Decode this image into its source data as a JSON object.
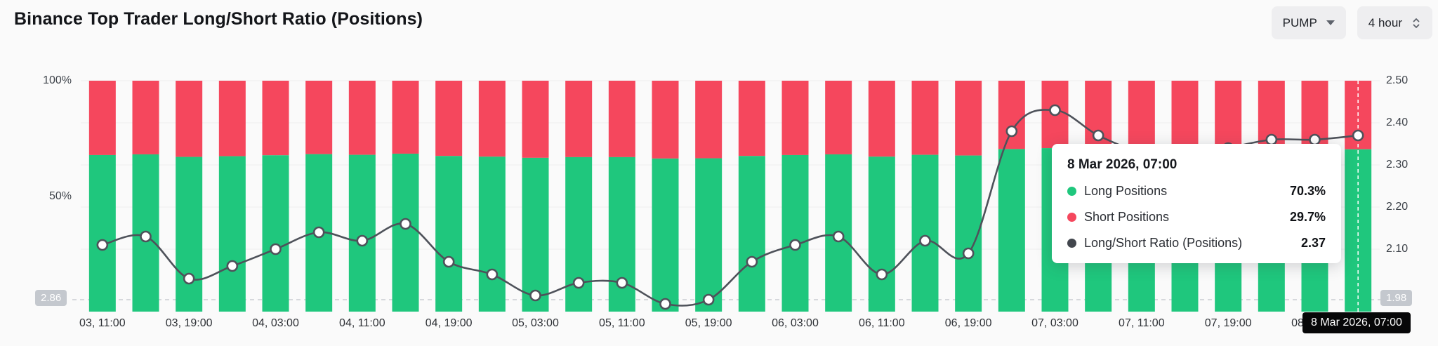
{
  "header": {
    "title": "Binance Top Trader Long/Short Ratio (Positions)",
    "pair_select": "PUMP",
    "interval_select": "4 hour"
  },
  "tooltip": {
    "title": "8 Mar 2026, 07:00",
    "rows": [
      {
        "label": "Long Positions",
        "value": "70.3%",
        "color": "#1fc77d"
      },
      {
        "label": "Short Positions",
        "value": "29.7%",
        "color": "#f5475d"
      },
      {
        "label": "Long/Short Ratio (Positions)",
        "value": "2.37",
        "color": "#42464d"
      }
    ]
  },
  "axis_tooltip": "8 Mar 2026, 07:00",
  "chart_data": {
    "type": "bar",
    "subtype": "stacked-bars-with-line-overlay",
    "title": "Binance Top Trader Long/Short Ratio (Positions)",
    "symbol": "PUMP",
    "interval": "4 hour",
    "x": [
      "03, 11:00",
      "03, 15:00",
      "03, 19:00",
      "03, 23:00",
      "04, 03:00",
      "04, 07:00",
      "04, 11:00",
      "04, 15:00",
      "04, 19:00",
      "04, 23:00",
      "05, 03:00",
      "05, 07:00",
      "05, 11:00",
      "05, 15:00",
      "05, 19:00",
      "05, 23:00",
      "06, 03:00",
      "06, 07:00",
      "06, 11:00",
      "06, 15:00",
      "06, 19:00",
      "06, 23:00",
      "07, 03:00",
      "07, 07:00",
      "07, 11:00",
      "07, 15:00",
      "07, 19:00",
      "07, 23:00",
      "08, 03:00",
      "08, 07:00"
    ],
    "x_label_every": 2,
    "series": [
      {
        "name": "Long Positions",
        "type": "bar",
        "stack": true,
        "unit": "%",
        "color": "#1fc77d",
        "values": [
          67.8,
          68.1,
          67.0,
          67.3,
          67.7,
          68.2,
          67.9,
          68.4,
          67.4,
          67.1,
          66.6,
          66.9,
          66.9,
          66.3,
          66.4,
          67.4,
          67.8,
          68.1,
          67.1,
          67.9,
          67.6,
          70.4,
          70.8,
          70.3,
          70.0,
          69.9,
          70.1,
          70.2,
          70.2,
          70.3
        ]
      },
      {
        "name": "Short Positions",
        "type": "bar",
        "stack": true,
        "unit": "%",
        "color": "#f5475d",
        "values": [
          32.2,
          31.9,
          33.0,
          32.7,
          32.3,
          31.8,
          32.1,
          31.6,
          32.6,
          32.9,
          33.4,
          33.1,
          33.1,
          33.7,
          33.6,
          32.6,
          32.2,
          31.9,
          32.9,
          32.1,
          32.4,
          29.6,
          29.2,
          29.7,
          30.0,
          30.1,
          29.9,
          29.8,
          29.8,
          29.7
        ]
      },
      {
        "name": "Long/Short Ratio (Positions)",
        "type": "line",
        "color": "#4e525a",
        "values": [
          2.11,
          2.13,
          2.03,
          2.06,
          2.1,
          2.14,
          2.12,
          2.16,
          2.07,
          2.04,
          1.99,
          2.02,
          2.02,
          1.97,
          1.98,
          2.07,
          2.11,
          2.13,
          2.04,
          2.12,
          2.09,
          2.38,
          2.43,
          2.37,
          2.33,
          2.32,
          2.34,
          2.36,
          2.36,
          2.37
        ]
      }
    ],
    "left_axis": {
      "unit": "%",
      "min": 0,
      "max": 100,
      "ticks": [
        {
          "label": "100%",
          "value": 100
        },
        {
          "label": "50%",
          "value": 50
        }
      ]
    },
    "right_axis": {
      "min": 1.95,
      "max": 2.5,
      "ticks": [
        {
          "label": "2.50",
          "value": 2.5
        },
        {
          "label": "2.40",
          "value": 2.4
        },
        {
          "label": "2.30",
          "value": 2.3
        },
        {
          "label": "2.20",
          "value": 2.2
        },
        {
          "label": "2.10",
          "value": 2.1
        }
      ]
    },
    "min_line_value": 1.98,
    "left_edge_badge": "2.86",
    "right_edge_badge": "1.98",
    "highlight_index": 29,
    "grid": true,
    "legend_position": "none"
  }
}
